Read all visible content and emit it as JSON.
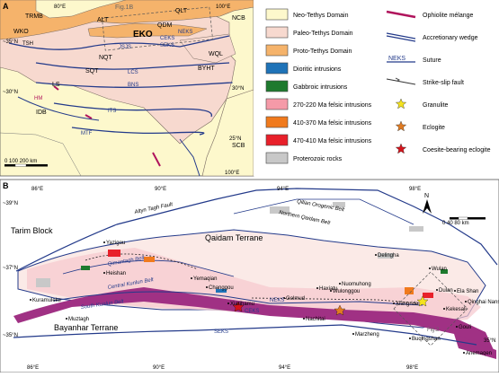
{
  "panel_a": {
    "label": "A",
    "lat_labels": [
      "~35°N",
      "~30°N",
      "25°N",
      "30°N"
    ],
    "lon_labels": [
      "80°E",
      "100°E",
      "100°E"
    ],
    "inset_label": "Fig.1B",
    "blocks": [
      "TRMB",
      "ALT",
      "QLT",
      "NCB",
      "QDM",
      "EKO",
      "NEKS",
      "CEKS",
      "SEKS",
      "WKO",
      "TSH",
      "JSJS",
      "NQT",
      "SQT",
      "LCS",
      "BNS",
      "WQL",
      "BYHT",
      "LS",
      "HM",
      "IDB",
      "ITS",
      "MTF",
      "SCB"
    ],
    "scale_label": "0   100  200 km"
  },
  "legend": {
    "items": [
      {
        "label": "Neo-Tethys Domain",
        "color": "#fdf8cc"
      },
      {
        "label": "Paleo-Tethys Domain",
        "color": "#f7d9cf"
      },
      {
        "label": "Proto-Tethys Domain",
        "color": "#f5b36b"
      },
      {
        "label": "Dioritic intrusions",
        "color": "#1f73b8"
      },
      {
        "label": "Gabbroic  intrusions",
        "color": "#1e7a2e"
      },
      {
        "label": "270-220 Ma felsic intrusions",
        "color": "#f59aa8"
      },
      {
        "label": "410-370 Ma felsic intrusions",
        "color": "#f07a1d"
      },
      {
        "label": "470-410 Ma felsic intrusions",
        "color": "#e8202a"
      },
      {
        "label": "Proterozoic rocks",
        "color": "#c8c8c8"
      }
    ],
    "symbols": [
      {
        "label": "Ophiolite mélange",
        "icon": "ophiolite"
      },
      {
        "label": "Accretionary wedge",
        "icon": "wedge"
      },
      {
        "label": "Suture",
        "icon": "suture",
        "tag": "NEKS"
      },
      {
        "label": "Strike-slip fault",
        "icon": "fault"
      },
      {
        "label": "Granulite",
        "icon": "star",
        "color": "#f4e21e"
      },
      {
        "label": "Eclogite",
        "icon": "star",
        "color": "#e07b22"
      },
      {
        "label": "Coesite-bearing eclogite",
        "icon": "star",
        "color": "#d4141c"
      }
    ]
  },
  "panel_b": {
    "label": "B",
    "lon_labels": [
      "86°E",
      "90°E",
      "94°E",
      "98°E"
    ],
    "lon_labels_bottom": [
      "86°E",
      "90°E",
      "94°E",
      "98°E"
    ],
    "lat_labels": [
      "~39°N",
      "~37°N",
      "~35°N",
      "35°N"
    ],
    "scale_label": "0   40  80 km",
    "north": "N",
    "regions": {
      "tarim": "Tarim Block",
      "qaidam": "Qaidam Terrane",
      "bayanhar": "Bayanhar Terrane",
      "altyn": "Altyn Tagh Fault",
      "qilian": "Qilian Orogenic Belt",
      "nqaidam": "Northern Qaidam Belt",
      "qimantagh": "Qimantagh Belt",
      "ckunlun": "Central Kunlun Belt",
      "skunlun": "South Kunlun Belt"
    },
    "places": [
      "Yazigou",
      "Yemaqian",
      "Changgou",
      "Heishan",
      "Kuramuleke",
      "Muztagh",
      "Xiarihamu",
      "Nachitai",
      "Golmud",
      "Haxiatu",
      "Wulonggou",
      "Nuomuhong",
      "Delingha",
      "Wulan",
      "Dulan",
      "Xiangride",
      "Marzheng",
      "Buqingshan",
      "Anemaqen",
      "Qinghai Nanshan",
      "Ela Shan",
      "Kekesali",
      "Gouli"
    ],
    "sutures": [
      "NEKS",
      "CEKS",
      "SEKS"
    ],
    "inset_label": "Fig.2"
  }
}
